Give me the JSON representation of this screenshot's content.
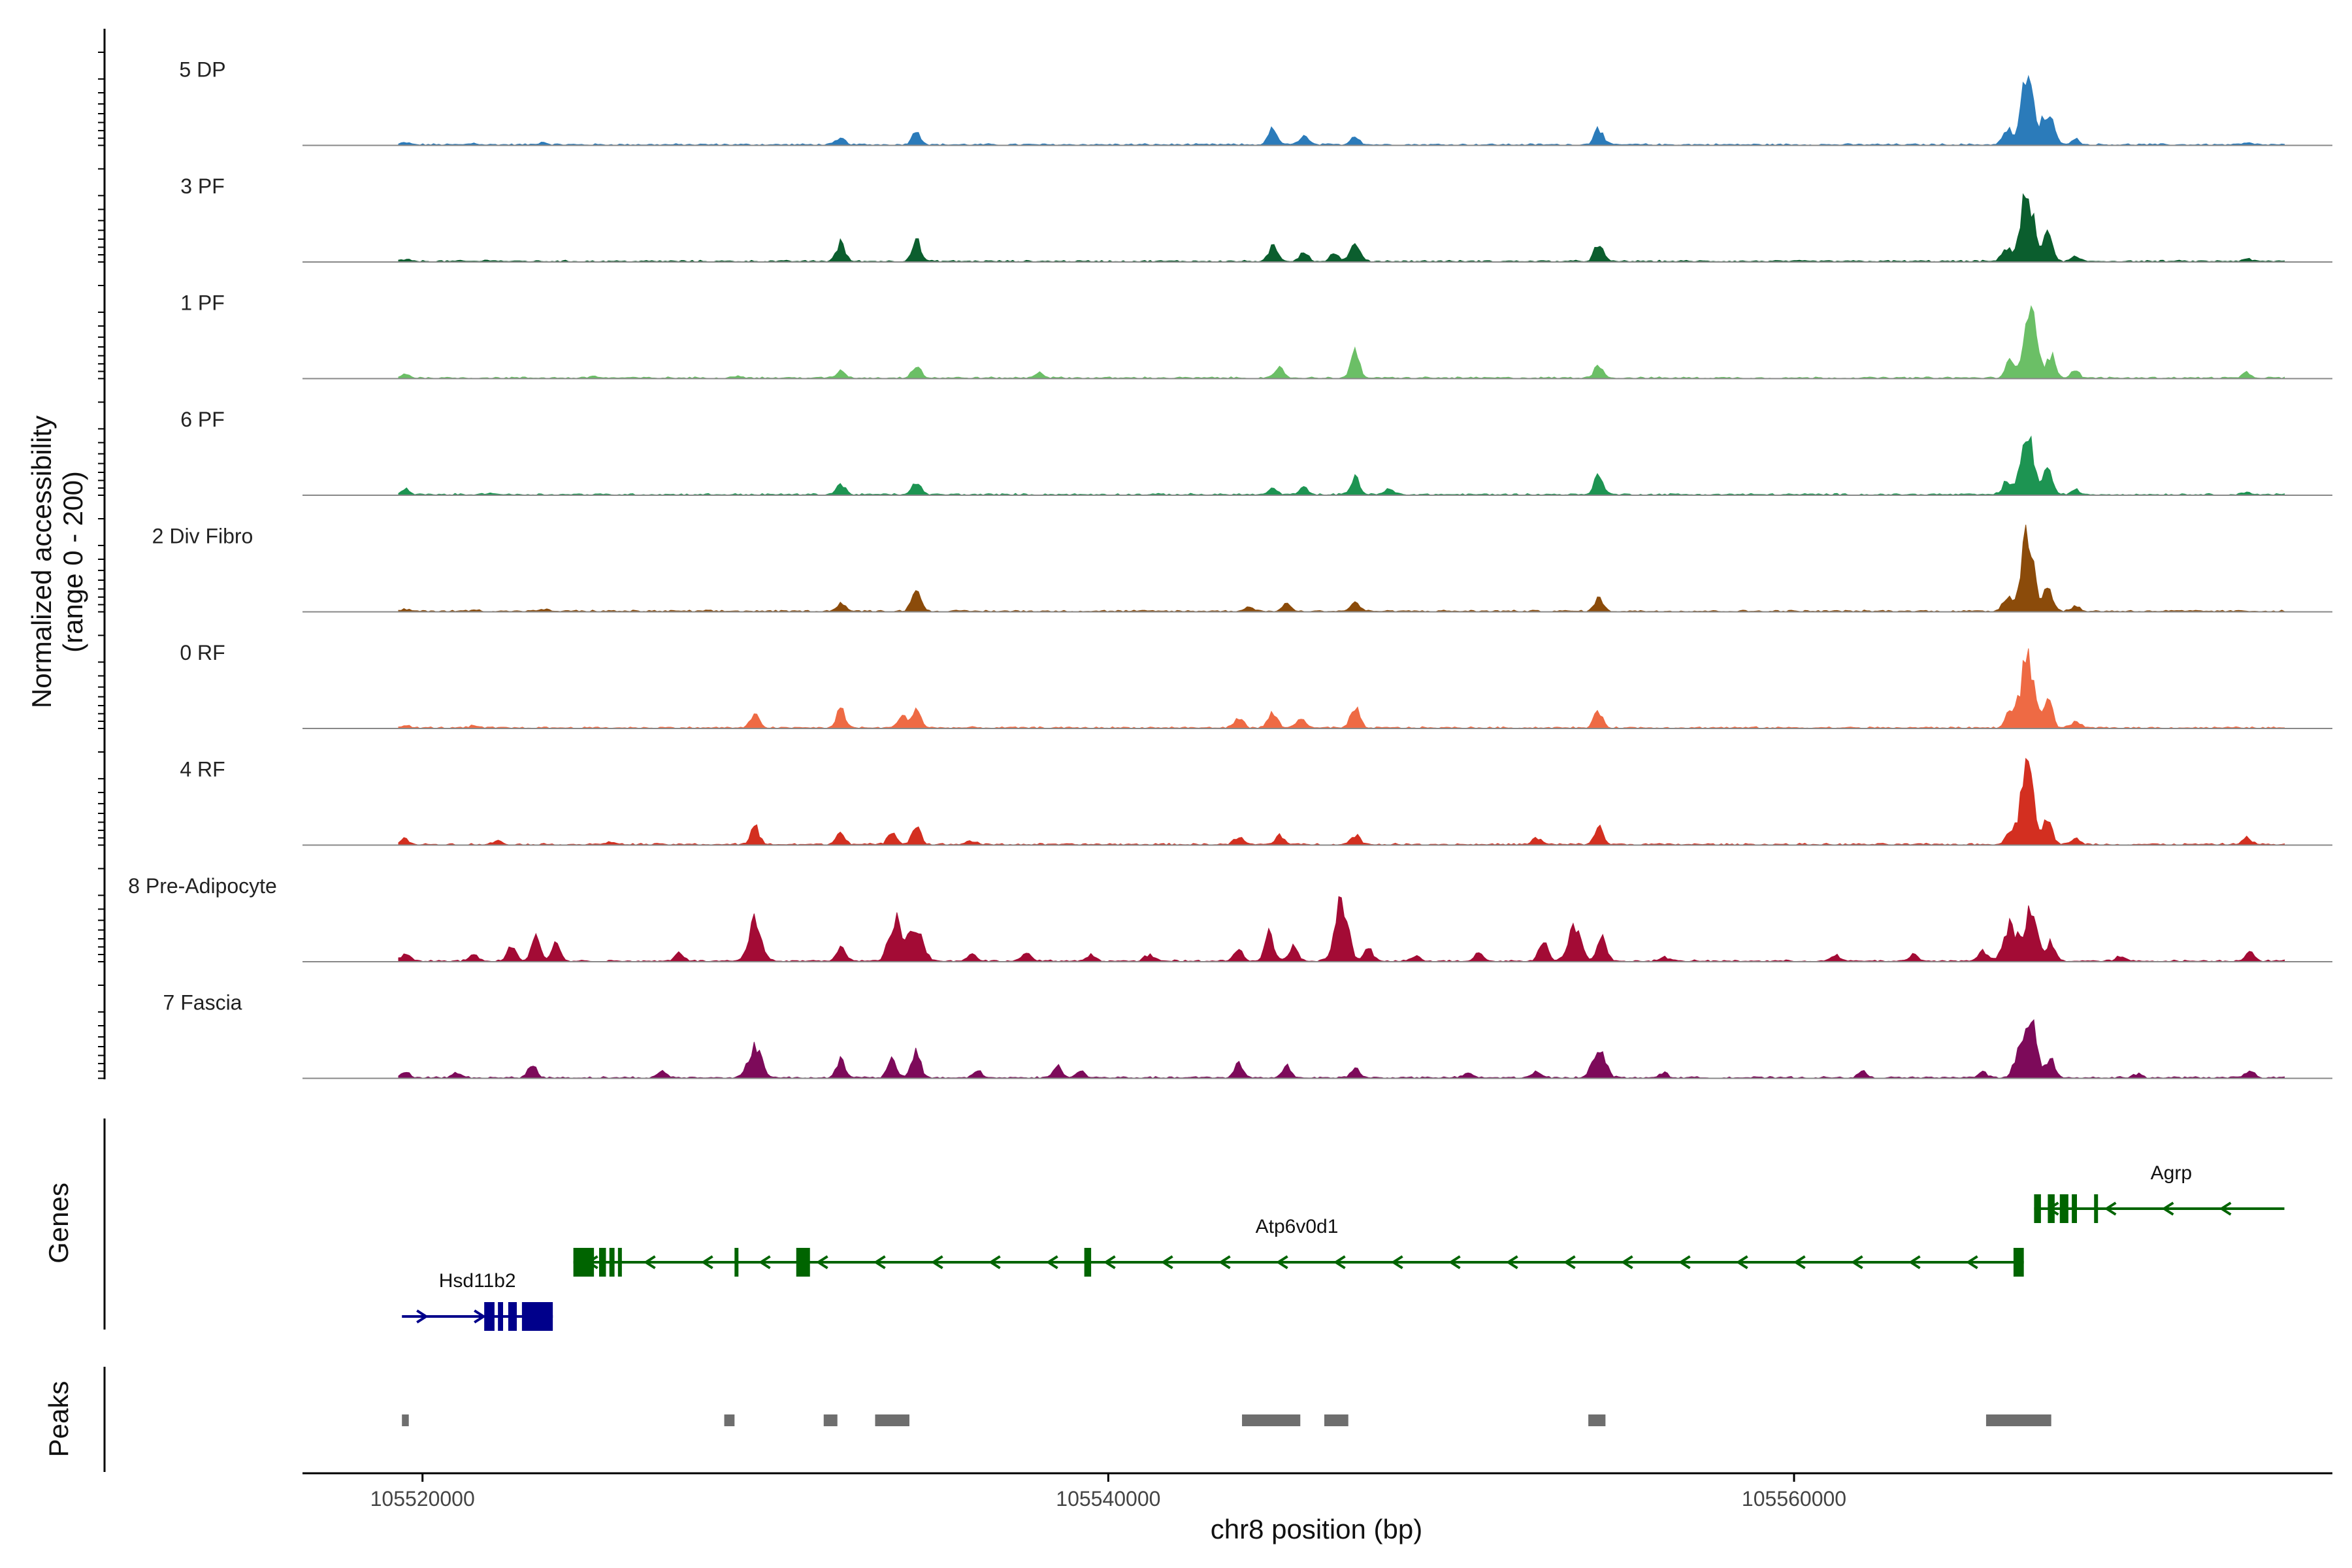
{
  "chart_data": {
    "type": "area",
    "title": "",
    "ylabel_line1": "Normalized accessibility",
    "ylabel_line2": "(range 0 - 200)",
    "xlabel": "chr8 position (bp)",
    "xlim": [
      105516500,
      105575700
    ],
    "ylim": [
      0,
      200
    ],
    "x_ticks": [
      {
        "value": 105520000,
        "label": "105520000"
      },
      {
        "value": 105540000,
        "label": "105540000"
      },
      {
        "value": 105560000,
        "label": "105560000"
      }
    ],
    "panel_labels": {
      "genes": "Genes",
      "peaks": "Peaks"
    },
    "tracks": [
      {
        "name": "5 DP",
        "color": "#2b7bba",
        "peaks": [
          [
            105519500,
            4
          ],
          [
            105521500,
            3
          ],
          [
            105523500,
            5
          ],
          [
            105532200,
            15
          ],
          [
            105534400,
            28
          ],
          [
            105544800,
            35
          ],
          [
            105545700,
            22
          ],
          [
            105547200,
            18
          ],
          [
            105554300,
            36
          ],
          [
            105566200,
            35
          ],
          [
            105566800,
            140
          ],
          [
            105567400,
            65
          ],
          [
            105568200,
            12
          ],
          [
            105573200,
            4
          ]
        ]
      },
      {
        "name": "3 PF",
        "color": "#0b5e2e",
        "peaks": [
          [
            105519500,
            4
          ],
          [
            105522000,
            3
          ],
          [
            105532200,
            40
          ],
          [
            105534400,
            45
          ],
          [
            105544800,
            32
          ],
          [
            105545700,
            20
          ],
          [
            105546600,
            16
          ],
          [
            105547200,
            40
          ],
          [
            105554300,
            38
          ],
          [
            105566200,
            30
          ],
          [
            105566800,
            150
          ],
          [
            105567400,
            60
          ],
          [
            105568200,
            10
          ],
          [
            105573200,
            5
          ]
        ]
      },
      {
        "name": "1 PF",
        "color": "#6bbf66",
        "peaks": [
          [
            105519500,
            8
          ],
          [
            105525000,
            4
          ],
          [
            105529200,
            5
          ],
          [
            105532200,
            15
          ],
          [
            105534400,
            28
          ],
          [
            105538000,
            12
          ],
          [
            105545000,
            20
          ],
          [
            105547200,
            55
          ],
          [
            105554300,
            30
          ],
          [
            105566300,
            35
          ],
          [
            105566900,
            150
          ],
          [
            105567500,
            50
          ],
          [
            105568200,
            14
          ],
          [
            105573200,
            10
          ]
        ]
      },
      {
        "name": "6 PF",
        "color": "#1d9452",
        "peaks": [
          [
            105519500,
            12
          ],
          [
            105522000,
            4
          ],
          [
            105532200,
            22
          ],
          [
            105534400,
            28
          ],
          [
            105544800,
            12
          ],
          [
            105545700,
            14
          ],
          [
            105547200,
            40
          ],
          [
            105548200,
            14
          ],
          [
            105554300,
            45
          ],
          [
            105566200,
            30
          ],
          [
            105566800,
            130
          ],
          [
            105567400,
            60
          ],
          [
            105568200,
            10
          ],
          [
            105573200,
            5
          ]
        ]
      },
      {
        "name": "2 Div Fibro",
        "color": "#8b4b0a",
        "peaks": [
          [
            105519500,
            4
          ],
          [
            105521500,
            3
          ],
          [
            105523500,
            4
          ],
          [
            105532200,
            18
          ],
          [
            105534400,
            52
          ],
          [
            105544100,
            10
          ],
          [
            105545200,
            16
          ],
          [
            105547200,
            20
          ],
          [
            105554300,
            28
          ],
          [
            105566200,
            30
          ],
          [
            105566800,
            165
          ],
          [
            105567400,
            60
          ],
          [
            105568200,
            10
          ]
        ]
      },
      {
        "name": "0 RF",
        "color": "#ee6a44",
        "peaks": [
          [
            105519500,
            5
          ],
          [
            105521500,
            4
          ],
          [
            105529700,
            28
          ],
          [
            105532200,
            40
          ],
          [
            105534000,
            26
          ],
          [
            105534400,
            40
          ],
          [
            105543800,
            24
          ],
          [
            105544800,
            32
          ],
          [
            105545600,
            22
          ],
          [
            105547200,
            45
          ],
          [
            105554300,
            36
          ],
          [
            105566300,
            40
          ],
          [
            105566800,
            155
          ],
          [
            105567400,
            60
          ],
          [
            105568200,
            14
          ]
        ]
      },
      {
        "name": "4 RF",
        "color": "#d32f20",
        "peaks": [
          [
            105519500,
            12
          ],
          [
            105522200,
            8
          ],
          [
            105525500,
            6
          ],
          [
            105529700,
            38
          ],
          [
            105532200,
            25
          ],
          [
            105533700,
            25
          ],
          [
            105534400,
            40
          ],
          [
            105536000,
            8
          ],
          [
            105543800,
            16
          ],
          [
            105545000,
            20
          ],
          [
            105547200,
            22
          ],
          [
            105552500,
            14
          ],
          [
            105554300,
            40
          ],
          [
            105566300,
            30
          ],
          [
            105566800,
            170
          ],
          [
            105567400,
            60
          ],
          [
            105568200,
            12
          ],
          [
            105573200,
            16
          ]
        ]
      },
      {
        "name": "8 Pre-Adipocyte",
        "color": "#a30b35",
        "peaks": [
          [
            105519500,
            16
          ],
          [
            105521500,
            14
          ],
          [
            105522600,
            35
          ],
          [
            105523300,
            55
          ],
          [
            105523900,
            38
          ],
          [
            105527500,
            20
          ],
          [
            105529700,
            90
          ],
          [
            105532200,
            35
          ],
          [
            105533800,
            95
          ],
          [
            105534400,
            82
          ],
          [
            105536000,
            16
          ],
          [
            105537600,
            18
          ],
          [
            105539500,
            14
          ],
          [
            105541200,
            14
          ],
          [
            105543800,
            28
          ],
          [
            105544700,
            60
          ],
          [
            105545400,
            30
          ],
          [
            105546800,
            135
          ],
          [
            105547600,
            25
          ],
          [
            105549000,
            12
          ],
          [
            105550800,
            18
          ],
          [
            105552700,
            50
          ],
          [
            105553600,
            75
          ],
          [
            105554400,
            50
          ],
          [
            105556200,
            10
          ],
          [
            105561200,
            12
          ],
          [
            105563500,
            14
          ],
          [
            105565500,
            24
          ],
          [
            105566300,
            80
          ],
          [
            105566900,
            110
          ],
          [
            105567500,
            42
          ],
          [
            105569500,
            10
          ],
          [
            105573300,
            22
          ]
        ]
      },
      {
        "name": "7 Fascia",
        "color": "#7d0a5a",
        "peaks": [
          [
            105519500,
            14
          ],
          [
            105521000,
            10
          ],
          [
            105523200,
            28
          ],
          [
            105527000,
            14
          ],
          [
            105529700,
            70
          ],
          [
            105532200,
            40
          ],
          [
            105533700,
            40
          ],
          [
            105534400,
            55
          ],
          [
            105536200,
            14
          ],
          [
            105538500,
            26
          ],
          [
            105539200,
            16
          ],
          [
            105543800,
            30
          ],
          [
            105545200,
            25
          ],
          [
            105547200,
            20
          ],
          [
            105550500,
            10
          ],
          [
            105552500,
            14
          ],
          [
            105554300,
            65
          ],
          [
            105556200,
            10
          ],
          [
            105562000,
            12
          ],
          [
            105565500,
            14
          ],
          [
            105566500,
            40
          ],
          [
            105566900,
            120
          ],
          [
            105567500,
            40
          ],
          [
            105570000,
            8
          ],
          [
            105573300,
            16
          ]
        ]
      }
    ],
    "genes": [
      {
        "name": "Hsd11b2",
        "color": "#00008b",
        "strand": "+",
        "start": 105519400,
        "end": 105523800,
        "row": 2,
        "exons": [
          [
            105521800,
            105522100
          ],
          [
            105522200,
            105522350
          ],
          [
            105522500,
            105522750
          ],
          [
            105522900,
            105523800
          ]
        ]
      },
      {
        "name": "Atp6v0d1",
        "color": "#006400",
        "strand": "-",
        "start": 105524400,
        "end": 105566700,
        "row": 1,
        "exons": [
          [
            105524400,
            105525000
          ],
          [
            105525150,
            105525350
          ],
          [
            105525450,
            105525600
          ],
          [
            105525700,
            105525800
          ],
          [
            105529100,
            105529150
          ],
          [
            105530900,
            105531300
          ],
          [
            105539300,
            105539500
          ],
          [
            105566400,
            105566700
          ]
        ]
      },
      {
        "name": "Agrp",
        "color": "#006400",
        "strand": "-",
        "start": 105567000,
        "end": 105574300,
        "row": 0,
        "exons": [
          [
            105567000,
            105567200
          ],
          [
            105567400,
            105567600
          ],
          [
            105567750,
            105568000
          ],
          [
            105568100,
            105568250
          ],
          [
            105568750,
            105568850
          ]
        ]
      }
    ],
    "peaks": [
      [
        105519400,
        105519600
      ],
      [
        105528800,
        105529100
      ],
      [
        105531700,
        105532100
      ],
      [
        105533200,
        105534200
      ],
      [
        105543900,
        105545600
      ],
      [
        105546300,
        105547000
      ],
      [
        105554000,
        105554500
      ],
      [
        105565600,
        105567500
      ]
    ]
  }
}
